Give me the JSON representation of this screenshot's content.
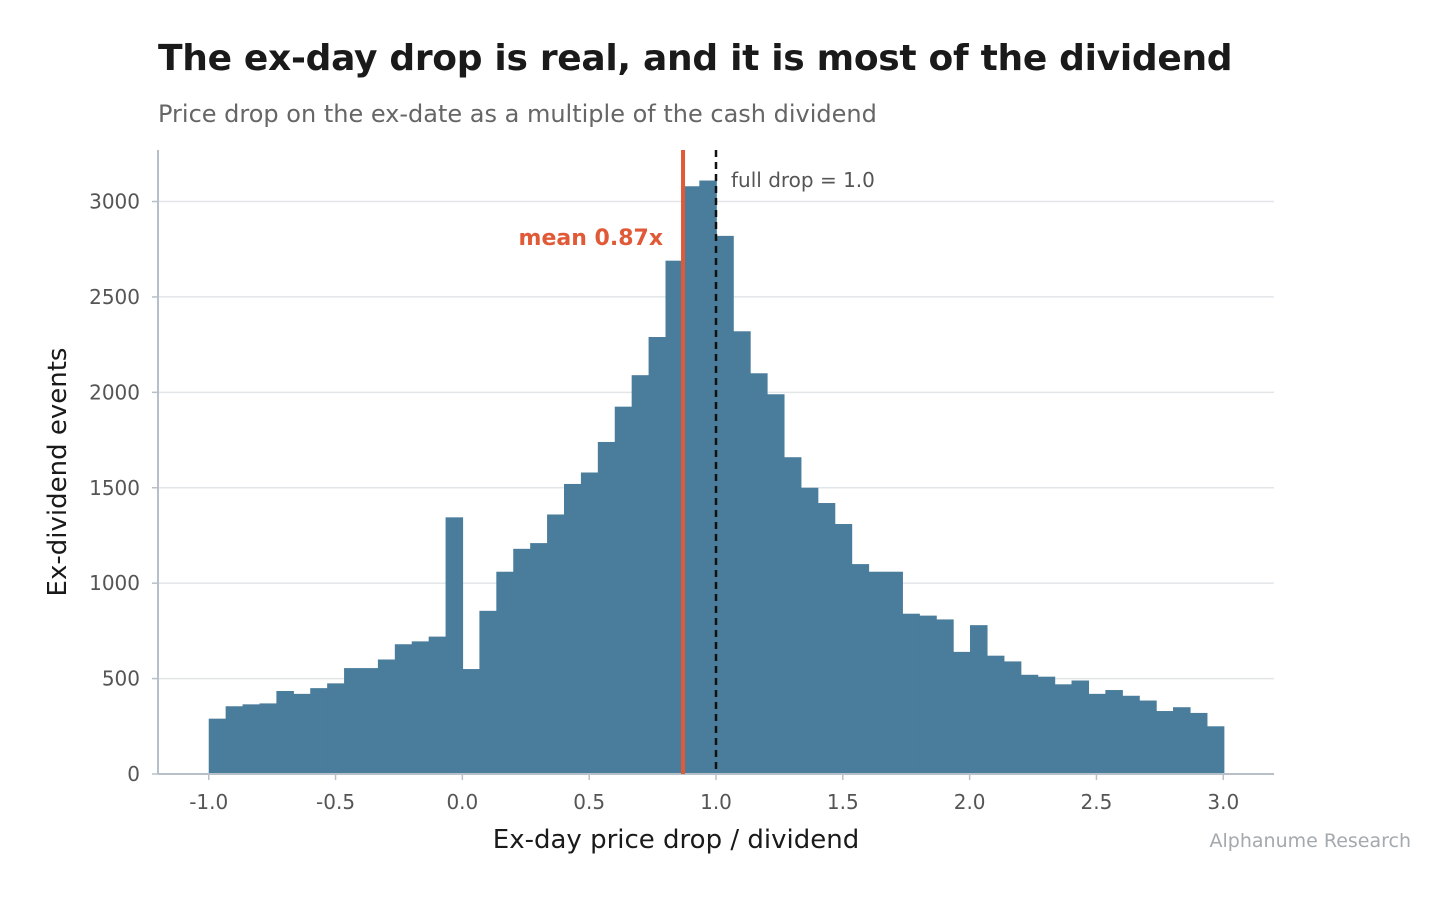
{
  "title": "The ex-day drop is real, and it is most of the dividend",
  "subtitle": "Price drop on the ex-date as a multiple of the cash dividend",
  "credit": "Alphanume Research",
  "colors": {
    "bar": "#4a7d9b",
    "mean": "#e05a38",
    "reference": "#111111",
    "grid": "#e3e6e9",
    "axis": "#b7c0c8"
  },
  "chart_data": {
    "type": "bar",
    "subtype": "histogram",
    "xlabel": "Ex-day price drop / dividend",
    "ylabel": "Ex-dividend events",
    "xlim": [
      -1.2,
      3.2
    ],
    "ylim": [
      0,
      3270
    ],
    "xticks": [
      -1.0,
      -0.5,
      0.0,
      0.5,
      1.0,
      1.5,
      2.0,
      2.5,
      3.0
    ],
    "xtick_labels": [
      "-1.0",
      "-0.5",
      "0.0",
      "0.5",
      "1.0",
      "1.5",
      "2.0",
      "2.5",
      "3.0"
    ],
    "yticks": [
      0,
      500,
      1000,
      1500,
      2000,
      2500,
      3000
    ],
    "ytick_labels": [
      "0",
      "500",
      "1000",
      "1500",
      "2000",
      "2500",
      "3000"
    ],
    "grid": "horizontal",
    "bin_start": -1.0,
    "bin_width": 0.0667,
    "counts": [
      290,
      355,
      365,
      370,
      435,
      420,
      450,
      475,
      555,
      555,
      600,
      680,
      695,
      720,
      1345,
      550,
      855,
      1060,
      1180,
      1210,
      1360,
      1520,
      1580,
      1740,
      1925,
      2090,
      2290,
      2690,
      3080,
      3110,
      2820,
      2320,
      2100,
      1990,
      1660,
      1500,
      1420,
      1310,
      1100,
      1060,
      1060,
      840,
      830,
      810,
      640,
      780,
      620,
      590,
      520,
      510,
      470,
      490,
      420,
      440,
      410,
      385,
      330,
      350,
      320,
      250
    ],
    "mean": 0.87,
    "mean_label": "mean 0.87x",
    "reference": 1.0,
    "reference_label": "full drop = 1.0"
  }
}
